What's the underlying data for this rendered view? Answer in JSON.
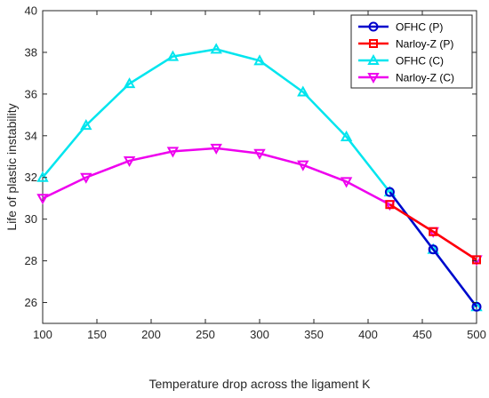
{
  "chart_data": {
    "type": "line",
    "title": "",
    "xlabel": "Temperature drop across the ligament K",
    "ylabel": "Life of plastic instability",
    "xlim": [
      100,
      500
    ],
    "ylim": [
      25,
      40
    ],
    "xticks": [
      100,
      150,
      200,
      250,
      300,
      350,
      400,
      450,
      500
    ],
    "yticks": [
      26,
      28,
      30,
      32,
      34,
      36,
      38,
      40
    ],
    "grid": false,
    "legend_position": "top-right",
    "x": [
      100,
      140,
      180,
      220,
      260,
      300,
      340,
      380,
      420,
      460,
      500
    ],
    "series": [
      {
        "name": "OFHC (P)",
        "color": "#0000cc",
        "marker": "circle",
        "values": [
          null,
          null,
          null,
          null,
          null,
          null,
          null,
          null,
          31.3,
          28.55,
          25.8
        ]
      },
      {
        "name": "Narloy-Z (P)",
        "color": "#ff0000",
        "marker": "square",
        "values": [
          null,
          null,
          null,
          null,
          null,
          null,
          null,
          null,
          30.7,
          29.4,
          28.05
        ]
      },
      {
        "name": "OFHC (C)",
        "color": "#00e5ee",
        "marker": "triangle-up",
        "values": [
          32.0,
          34.5,
          36.5,
          37.8,
          38.15,
          37.6,
          36.1,
          33.95,
          31.3,
          28.55,
          25.8
        ]
      },
      {
        "name": "Narloy-Z (C)",
        "color": "#ee00ee",
        "marker": "triangle-down",
        "values": [
          31.0,
          32.0,
          32.8,
          33.25,
          33.4,
          33.15,
          32.6,
          31.8,
          30.7,
          29.4,
          28.05
        ]
      }
    ]
  }
}
